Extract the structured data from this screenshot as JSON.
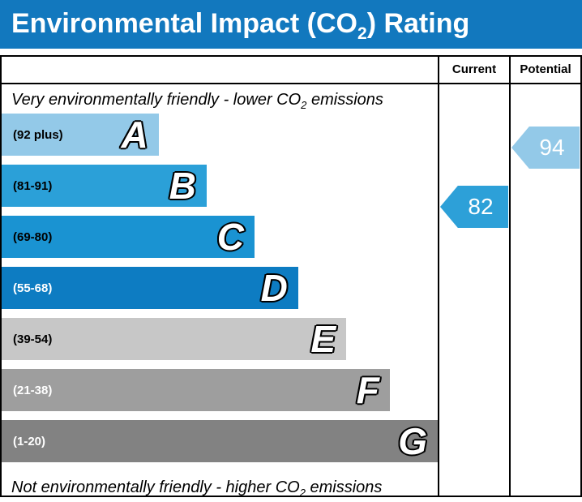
{
  "title": {
    "pre": "Environmental Impact (CO",
    "sub": "2",
    "post": ") Rating"
  },
  "notes": {
    "top_pre": "Very environmentally friendly - lower CO",
    "top_sub": "2",
    "top_post": " emissions",
    "bottom_pre": "Not environmentally friendly - higher CO",
    "bottom_sub": "2",
    "bottom_post": " emissions"
  },
  "chart_data": {
    "type": "bar",
    "title": "Environmental Impact (CO2) Rating",
    "title_bar_color": "#1278be",
    "top_note": "Very environmentally friendly - lower CO2 emissions",
    "bottom_note": "Not environmentally friendly - higher CO2 emissions",
    "categories": [
      "A",
      "B",
      "C",
      "D",
      "E",
      "F",
      "G"
    ],
    "bands": [
      {
        "letter": "A",
        "range": "(92 plus)",
        "color": "#93c9e8",
        "range_text_color": "#000000",
        "width_pct": 36
      },
      {
        "letter": "B",
        "range": "(81-91)",
        "color": "#2ba0d8",
        "range_text_color": "#000000",
        "width_pct": 47
      },
      {
        "letter": "C",
        "range": "(69-80)",
        "color": "#1a93d2",
        "range_text_color": "#000000",
        "width_pct": 58
      },
      {
        "letter": "D",
        "range": "(55-68)",
        "color": "#0d7cc2",
        "range_text_color": "#ffffff",
        "width_pct": 68
      },
      {
        "letter": "E",
        "range": "(39-54)",
        "color": "#c7c7c7",
        "range_text_color": "#000000",
        "width_pct": 79
      },
      {
        "letter": "F",
        "range": "(21-38)",
        "color": "#9e9e9e",
        "range_text_color": "#ffffff",
        "width_pct": 89
      },
      {
        "letter": "G",
        "range": "(1-20)",
        "color": "#828282",
        "range_text_color": "#ffffff",
        "width_pct": 100
      }
    ],
    "current": {
      "label": "Current",
      "value": "82",
      "color": "#2da0d8"
    },
    "potential": {
      "label": "Potential",
      "value": "94",
      "color": "#93c9e8"
    }
  }
}
